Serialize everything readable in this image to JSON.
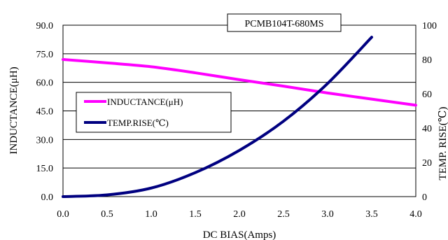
{
  "chart_data": {
    "type": "line",
    "title": "PCMB104T-680MS",
    "xlabel": "DC BIAS(Amps)",
    "ylabel_left": "INDUCTANCE(μH)",
    "ylabel_right": "TEMP. RISE(℃)",
    "xlim": [
      0,
      4
    ],
    "ylim_left": [
      0,
      90
    ],
    "ylim_right": [
      0,
      100
    ],
    "x_ticks": [
      "0.0",
      "0.5",
      "1.0",
      "1.5",
      "2.0",
      "2.5",
      "3.0",
      "3.5",
      "4.0"
    ],
    "y_left_ticks": [
      "0.0",
      "15.0",
      "30.0",
      "45.0",
      "60.0",
      "75.0",
      "90.0"
    ],
    "y_right_ticks": [
      "0",
      "20",
      "40",
      "60",
      "80",
      "100"
    ],
    "grid": "horizontal",
    "legend_position": "left",
    "series": [
      {
        "name": "INDUCTANCE(μH)",
        "axis": "left",
        "color": "#ff00ff",
        "x": [
          0,
          0.5,
          1.0,
          1.5,
          2.0,
          2.5,
          3.0,
          3.5,
          4.0
        ],
        "values": [
          72.0,
          70.2,
          68.2,
          65.0,
          61.4,
          58.0,
          54.4,
          51.2,
          48.0
        ]
      },
      {
        "name": "TEMP.RISE(℃)",
        "axis": "right",
        "color": "#000080",
        "x": [
          0,
          0.5,
          1.0,
          1.5,
          2.0,
          2.5,
          3.0,
          3.5
        ],
        "values": [
          0,
          1,
          5,
          14,
          27,
          44,
          66,
          93
        ]
      }
    ]
  }
}
